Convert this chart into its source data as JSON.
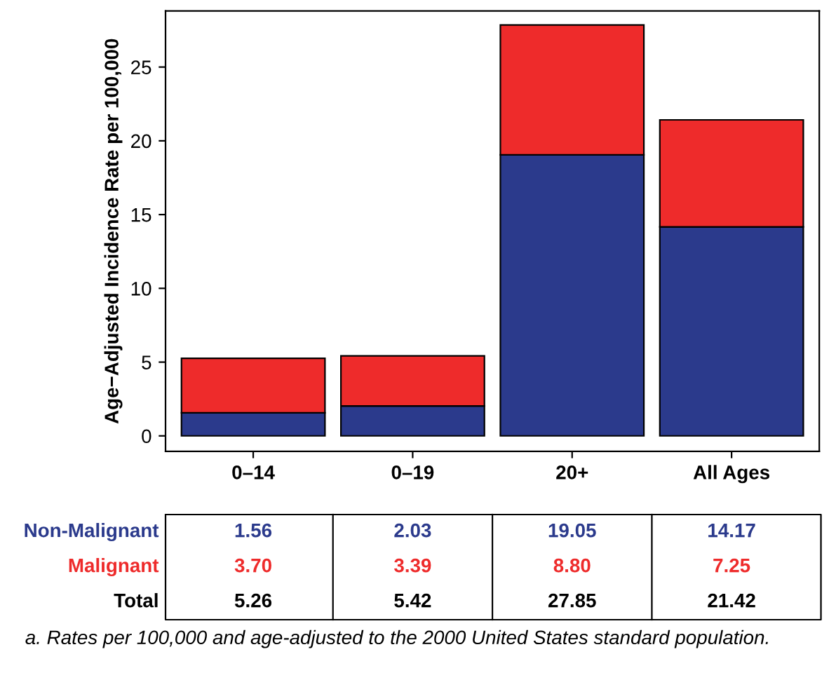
{
  "chart_data": {
    "type": "bar",
    "stacked": true,
    "ylabel": "Age−Adjusted Incidence Rate per 100,000",
    "categories": [
      "0–14",
      "0–19",
      "20+",
      "All Ages"
    ],
    "series": [
      {
        "name": "Non-Malignant",
        "color": "#2b3a8c",
        "values": [
          1.56,
          2.03,
          19.05,
          14.17
        ],
        "value_labels": [
          "1.56",
          "2.03",
          "19.05",
          "14.17"
        ]
      },
      {
        "name": "Malignant",
        "color": "#ee2b2b",
        "values": [
          3.7,
          3.39,
          8.8,
          7.25
        ],
        "value_labels": [
          "3.70",
          "3.39",
          "8.80",
          "7.25"
        ]
      }
    ],
    "ylim": [
      -1.05,
      28.8
    ],
    "yticks": [
      0,
      5,
      10,
      15,
      20,
      25
    ],
    "annotations": [
      "Total",
      "5.26",
      "5.42",
      "27.85",
      "21.42",
      "a. Rates per 100,000 and age-adjusted to the 2000 United States standard population."
    ]
  }
}
